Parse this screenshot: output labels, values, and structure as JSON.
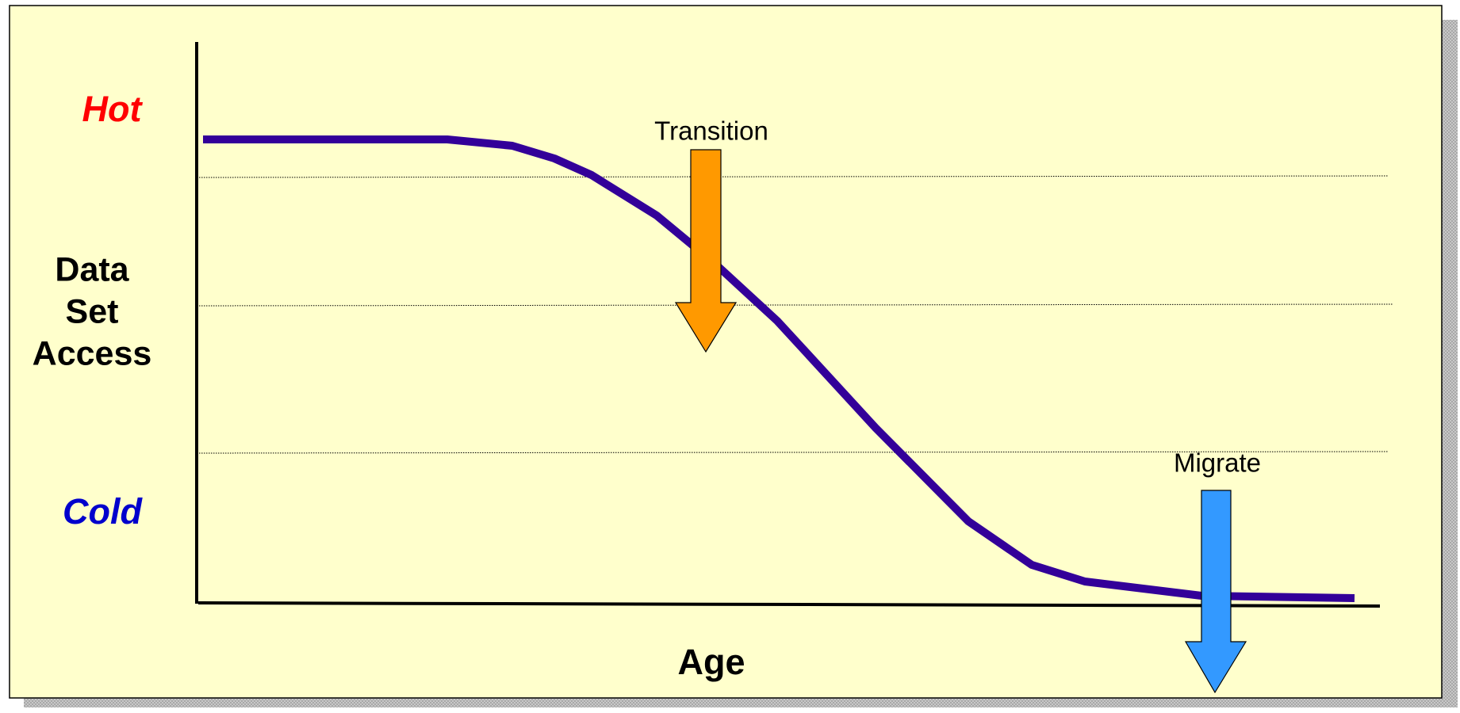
{
  "labels": {
    "hot": "Hot",
    "cold": "Cold",
    "y_axis": [
      "Data",
      "Set",
      "Access"
    ],
    "x_axis": "Age"
  },
  "arrows": [
    {
      "label": "Transition"
    },
    {
      "label": "Migrate"
    }
  ]
}
